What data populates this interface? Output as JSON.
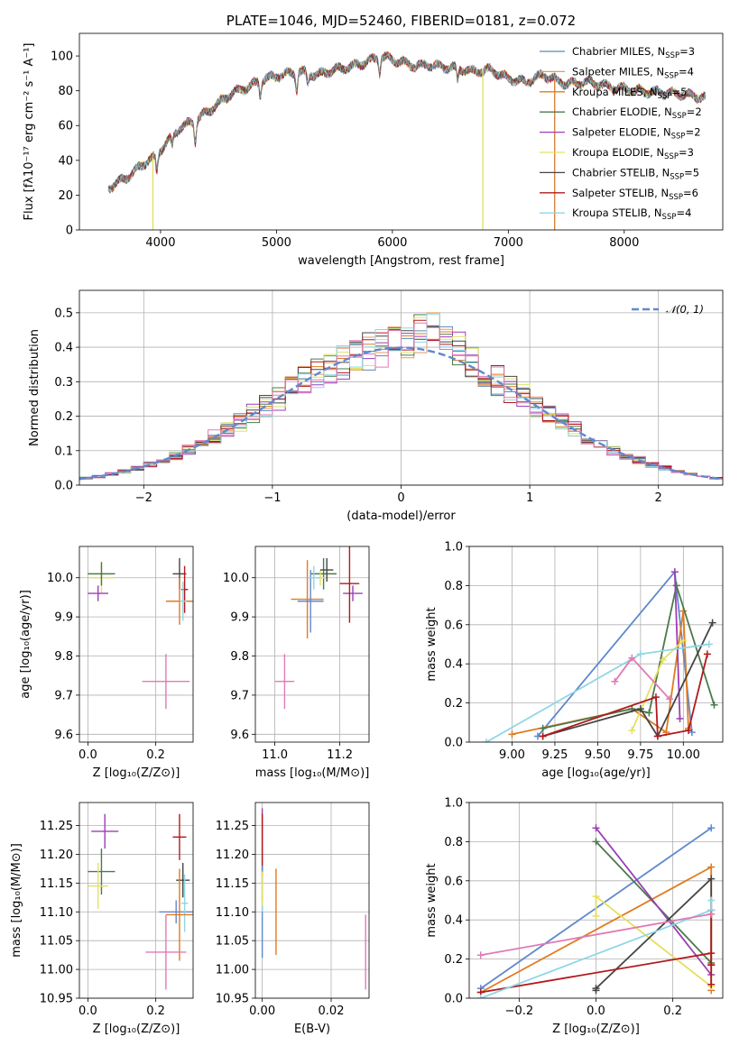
{
  "chart_data": [
    {
      "type": "line",
      "title": "PLATE=1046, MJD=52460, FIBERID=0181, z=0.072",
      "xlabel": "wavelength [Angstrom, rest frame]",
      "ylabel": "Flux [fλ10⁻¹⁷ erg cm⁻² s⁻¹ A⁻¹]",
      "xlim": [
        3300,
        8850
      ],
      "ylim": [
        0,
        113
      ],
      "xticks": [
        4000,
        5000,
        6000,
        7000,
        8000
      ],
      "yticks": [
        0,
        20,
        40,
        60,
        80,
        100
      ],
      "legend_position": "top-right",
      "continuum": {
        "x": [
          3550,
          3650,
          3750,
          3850,
          3950,
          4050,
          4150,
          4300,
          4450,
          4600,
          4750,
          4900,
          5050,
          5200,
          5350,
          5500,
          5650,
          5800,
          5900,
          6000,
          6100,
          6200,
          6300,
          6400,
          6550,
          6700,
          6850,
          7000,
          7150,
          7300,
          7500,
          7700,
          7900,
          8100,
          8300,
          8500,
          8700
        ],
        "y": [
          24,
          28,
          32,
          38,
          42,
          50,
          58,
          63,
          70,
          78,
          82,
          87,
          89,
          91,
          89,
          92,
          94,
          97,
          100,
          98,
          96,
          94,
          95,
          94,
          93,
          91,
          92,
          87,
          85,
          89,
          84,
          85,
          82,
          80,
          79,
          78,
          76
        ]
      },
      "dips": [
        {
          "x": 3934,
          "y": 0,
          "color": "#e2de5c"
        },
        {
          "x": 6780,
          "y": 0,
          "color": "#e2de5c"
        },
        {
          "x": 7400,
          "y": 0,
          "color": "#d97a2b"
        }
      ],
      "series": [
        {
          "name": "Chabrier MILES, N",
          "sub": "SSP",
          "suffix": "=3",
          "color": "#5f87b3"
        },
        {
          "name": "Salpeter MILES, N",
          "sub": "SSP",
          "suffix": "=4",
          "color": "#e8956b"
        },
        {
          "name": "Kroupa MILES, N",
          "sub": "SSP",
          "suffix": "=5",
          "color": "#e07b1f"
        },
        {
          "name": "Chabrier ELODIE, N",
          "sub": "SSP",
          "suffix": "=2",
          "color": "#4b7a4b"
        },
        {
          "name": "Salpeter ELODIE, N",
          "sub": "SSP",
          "suffix": "=2",
          "color": "#9b3fb5"
        },
        {
          "name": "Kroupa ELODIE, N",
          "sub": "SSP",
          "suffix": "=3",
          "color": "#e5e060"
        },
        {
          "name": "Chabrier STELIB, N",
          "sub": "SSP",
          "suffix": "=5",
          "color": "#454545"
        },
        {
          "name": "Salpeter STELIB, N",
          "sub": "SSP",
          "suffix": "=6",
          "color": "#b2191c"
        },
        {
          "name": "Kroupa STELIB, N",
          "sub": "SSP",
          "suffix": "=4",
          "color": "#8ed6e6"
        }
      ]
    },
    {
      "type": "histogram",
      "xlabel": "(data-model)/error",
      "ylabel": "Normed distribution",
      "xlim": [
        -2.5,
        2.5
      ],
      "ylim": [
        0,
        0.565
      ],
      "xticks": [
        -2,
        -1,
        0,
        1,
        2
      ],
      "yticks": [
        0.0,
        0.1,
        0.2,
        0.3,
        0.4,
        0.5
      ],
      "bin_width": 0.1,
      "grid": true,
      "legend_position": "top-right",
      "reference": {
        "label": "𝒩(0, 1)",
        "color": "#6088d0"
      },
      "series_colors": [
        "#5f87b3",
        "#e8956b",
        "#e07b1f",
        "#4b7a4b",
        "#9b3fb5",
        "#d9e56a",
        "#454545",
        "#b2191c",
        "#8ed6e6",
        "#e07ab5"
      ]
    },
    {
      "type": "errorbar",
      "xlabel": "Z [log₁₀(Z/Z⊙)]",
      "ylabel": "age  [log₁₀(age/yr)]",
      "xlim": [
        -0.025,
        0.31
      ],
      "ylim": [
        9.58,
        10.08
      ],
      "xticks": [
        0.0,
        0.2
      ],
      "yticks": [
        9.6,
        9.7,
        9.8,
        9.9,
        10.0
      ],
      "points": [
        {
          "x": 0.04,
          "y": 10.0,
          "xerr": 0.04,
          "yerr": 0.04,
          "color": "#e5e060"
        },
        {
          "x": 0.04,
          "y": 10.01,
          "xerr": 0.04,
          "yerr": 0.03,
          "color": "#4b7a4b"
        },
        {
          "x": 0.03,
          "y": 9.96,
          "xerr": 0.03,
          "yerr": 0.02,
          "color": "#9b3fb5"
        },
        {
          "x": 0.27,
          "y": 10.01,
          "xerr": 0.02,
          "yerr": 0.04,
          "color": "#454545"
        },
        {
          "x": 0.285,
          "y": 9.97,
          "xerr": 0.01,
          "yerr": 0.06,
          "color": "#b2191c"
        },
        {
          "x": 0.27,
          "y": 9.94,
          "xerr": 0.04,
          "yerr": 0.06,
          "color": "#e07b1f"
        },
        {
          "x": 0.28,
          "y": 9.94,
          "xerr": 0.01,
          "yerr": 0.05,
          "color": "#8ed6e6"
        },
        {
          "x": 0.23,
          "y": 9.735,
          "xerr": 0.07,
          "yerr": 0.07,
          "color": "#e07ab5"
        }
      ]
    },
    {
      "type": "errorbar",
      "xlabel": "mass [log₁₀(M/M⊙)]",
      "ylabel": "",
      "xlim": [
        10.94,
        11.29
      ],
      "ylim": [
        9.58,
        10.08
      ],
      "xticks": [
        11.0,
        11.2
      ],
      "yticks": [
        9.6,
        9.7,
        9.8,
        9.9,
        10.0
      ],
      "points": [
        {
          "x": 11.15,
          "y": 10.01,
          "xerr": 0.04,
          "yerr": 0.04,
          "color": "#4b7a4b"
        },
        {
          "x": 11.14,
          "y": 10.0,
          "xerr": 0.03,
          "yerr": 0.02,
          "color": "#e5e060"
        },
        {
          "x": 11.24,
          "y": 9.96,
          "xerr": 0.03,
          "yerr": 0.02,
          "color": "#9b3fb5"
        },
        {
          "x": 11.16,
          "y": 10.02,
          "xerr": 0.02,
          "yerr": 0.03,
          "color": "#454545"
        },
        {
          "x": 11.23,
          "y": 9.985,
          "xerr": 0.03,
          "yerr": 0.1,
          "color": "#b2191c"
        },
        {
          "x": 11.1,
          "y": 9.945,
          "xerr": 0.05,
          "yerr": 0.1,
          "color": "#e07b1f"
        },
        {
          "x": 11.11,
          "y": 9.94,
          "xerr": 0.04,
          "yerr": 0.08,
          "color": "#6088d0"
        },
        {
          "x": 11.12,
          "y": 10.0,
          "xerr": 0.02,
          "yerr": 0.03,
          "color": "#8ed6e6"
        },
        {
          "x": 11.03,
          "y": 9.735,
          "xerr": 0.03,
          "yerr": 0.07,
          "color": "#e07ab5"
        }
      ]
    },
    {
      "type": "line",
      "xlabel": "age  [log₁₀(age/yr)]",
      "ylabel": "mass weight",
      "xlim": [
        8.75,
        10.23
      ],
      "ylim": [
        0,
        1.0
      ],
      "xticks": [
        9.0,
        9.25,
        9.5,
        9.75,
        10.0
      ],
      "yticks": [
        0.0,
        0.2,
        0.4,
        0.6,
        0.8,
        1.0
      ],
      "series": [
        {
          "color": "#6088d0",
          "x": [
            9.15,
            9.95,
            10.05
          ],
          "y": [
            0.03,
            0.87,
            0.05
          ]
        },
        {
          "color": "#e07b1f",
          "x": [
            9.0,
            9.7,
            9.9,
            10.0,
            10.03
          ],
          "y": [
            0.04,
            0.17,
            0.05,
            0.67,
            0.07
          ]
        },
        {
          "color": "#4b7a4b",
          "x": [
            9.18,
            9.7,
            9.8,
            9.96,
            10.18
          ],
          "y": [
            0.07,
            0.17,
            0.15,
            0.8,
            0.19
          ]
        },
        {
          "color": "#9b3fb5",
          "x": [
            9.95,
            9.98
          ],
          "y": [
            0.87,
            0.12
          ]
        },
        {
          "color": "#e5e060",
          "x": [
            9.7,
            9.88,
            10.0
          ],
          "y": [
            0.06,
            0.42,
            0.52
          ]
        },
        {
          "color": "#454545",
          "x": [
            9.18,
            9.75,
            9.85,
            10.17
          ],
          "y": [
            0.03,
            0.17,
            0.03,
            0.61
          ]
        },
        {
          "color": "#b2191c",
          "x": [
            9.18,
            9.84,
            9.85,
            10.03,
            10.14
          ],
          "y": [
            0.03,
            0.23,
            0.03,
            0.06,
            0.45
          ]
        },
        {
          "color": "#8ed6e6",
          "x": [
            8.85,
            9.75,
            10.15
          ],
          "y": [
            0.0,
            0.45,
            0.5
          ]
        },
        {
          "color": "#e07ab5",
          "x": [
            9.6,
            9.7,
            9.92
          ],
          "y": [
            0.31,
            0.43,
            0.22
          ]
        }
      ]
    },
    {
      "type": "errorbar",
      "xlabel": "Z [log₁₀(Z/Z⊙)]",
      "ylabel": "mass [log₁₀(M/M⊙)]",
      "xlim": [
        -0.025,
        0.31
      ],
      "ylim": [
        10.95,
        11.29
      ],
      "xticks": [
        0.0,
        0.2
      ],
      "yticks": [
        10.95,
        11.0,
        11.05,
        11.1,
        11.15,
        11.2,
        11.25
      ],
      "points": [
        {
          "x": 0.05,
          "y": 11.24,
          "xerr": 0.04,
          "yerr": 0.03,
          "color": "#9b3fb5"
        },
        {
          "x": 0.04,
          "y": 11.17,
          "xerr": 0.04,
          "yerr": 0.04,
          "color": "#4b7a4b"
        },
        {
          "x": 0.03,
          "y": 11.145,
          "xerr": 0.03,
          "yerr": 0.04,
          "color": "#e5e060"
        },
        {
          "x": 0.27,
          "y": 11.23,
          "xerr": 0.02,
          "yerr": 0.04,
          "color": "#b2191c"
        },
        {
          "x": 0.28,
          "y": 11.155,
          "xerr": 0.02,
          "yerr": 0.03,
          "color": "#454545"
        },
        {
          "x": 0.26,
          "y": 11.1,
          "xerr": 0.05,
          "yerr": 0.02,
          "color": "#6088d0"
        },
        {
          "x": 0.285,
          "y": 11.115,
          "xerr": 0.01,
          "yerr": 0.05,
          "color": "#8ed6e6"
        },
        {
          "x": 0.27,
          "y": 11.095,
          "xerr": 0.04,
          "yerr": 0.08,
          "color": "#e07b1f"
        },
        {
          "x": 0.23,
          "y": 11.03,
          "xerr": 0.06,
          "yerr": 0.065,
          "color": "#e07ab5"
        }
      ]
    },
    {
      "type": "errorbar",
      "xlabel": "E(B-V)",
      "ylabel": "",
      "xlim": [
        -0.002,
        0.031
      ],
      "ylim": [
        10.95,
        11.29
      ],
      "xticks": [
        0.0,
        0.02
      ],
      "yticks": [
        10.95,
        11.0,
        11.05,
        11.1,
        11.15,
        11.2,
        11.25
      ],
      "points": [
        {
          "x": 0.0,
          "y": 11.2,
          "xerr": 0.0,
          "yerr": 0.08,
          "color": "#9b3fb5"
        },
        {
          "x": 0.0,
          "y": 11.21,
          "xerr": 0.0,
          "yerr": 0.06,
          "color": "#b2191c"
        },
        {
          "x": 0.0,
          "y": 11.1,
          "xerr": 0.0,
          "yerr": 0.08,
          "color": "#6088d0"
        },
        {
          "x": 0.0,
          "y": 11.13,
          "xerr": 0.0,
          "yerr": 0.03,
          "color": "#8ed6e6"
        },
        {
          "x": 0.0,
          "y": 11.14,
          "xerr": 0.0,
          "yerr": 0.03,
          "color": "#e5e060"
        },
        {
          "x": 0.004,
          "y": 11.1,
          "xerr": 0.0,
          "yerr": 0.075,
          "color": "#e07b1f"
        },
        {
          "x": 0.03,
          "y": 11.03,
          "xerr": 0.0,
          "yerr": 0.065,
          "color": "#e07ab5"
        }
      ]
    },
    {
      "type": "line",
      "xlabel": "Z [log₁₀(Z/Z⊙)]",
      "ylabel": "mass weight",
      "xlim": [
        -0.33,
        0.33
      ],
      "ylim": [
        0,
        1.0
      ],
      "xticks": [
        -0.2,
        0.0,
        0.2
      ],
      "yticks": [
        0.0,
        0.2,
        0.4,
        0.6,
        0.8,
        1.0
      ],
      "series": [
        {
          "color": "#6088d0",
          "x": [
            -0.3,
            0.3
          ],
          "y": [
            0.05,
            0.87
          ]
        },
        {
          "color": "#e07b1f",
          "x": [
            -0.3,
            0.3,
            0.3
          ],
          "y": [
            0.03,
            0.67,
            0.04
          ]
        },
        {
          "color": "#4b7a4b",
          "x": [
            0.0,
            0.3
          ],
          "y": [
            0.8,
            0.18
          ]
        },
        {
          "color": "#9b3fb5",
          "x": [
            0.0,
            0.3
          ],
          "y": [
            0.87,
            0.12
          ]
        },
        {
          "color": "#e5e060",
          "x": [
            0.0,
            0.0,
            0.3
          ],
          "y": [
            0.42,
            0.52,
            0.06
          ]
        },
        {
          "color": "#454545",
          "x": [
            0.0,
            0.0,
            0.3,
            0.3
          ],
          "y": [
            0.04,
            0.05,
            0.61,
            0.17
          ]
        },
        {
          "color": "#b2191c",
          "x": [
            -0.3,
            0.3,
            0.3,
            0.3,
            0.3
          ],
          "y": [
            0.03,
            0.23,
            0.17,
            0.07,
            0.45
          ]
        },
        {
          "color": "#8ed6e6",
          "x": [
            -0.3,
            0.3,
            0.3
          ],
          "y": [
            0.0,
            0.45,
            0.5
          ]
        },
        {
          "color": "#e07ab5",
          "x": [
            -0.3,
            0.3
          ],
          "y": [
            0.22,
            0.43
          ]
        }
      ]
    }
  ]
}
